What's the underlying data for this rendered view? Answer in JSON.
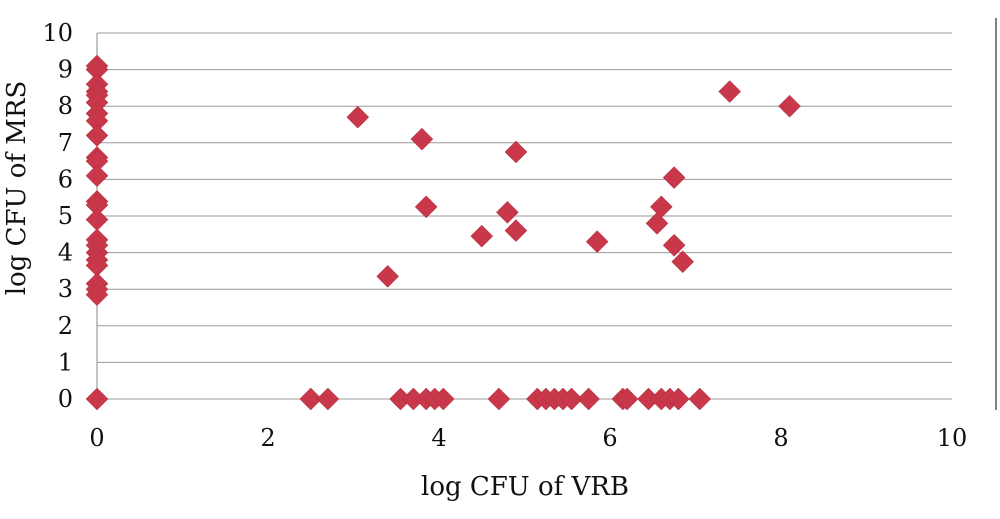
{
  "chart_data": {
    "type": "scatter",
    "xlabel": "log CFU of VRB",
    "ylabel": "log CFU of MRS",
    "xlim": [
      0,
      10
    ],
    "ylim": [
      0,
      10
    ],
    "x_ticks": [
      "0",
      "2",
      "4",
      "6",
      "8",
      "10"
    ],
    "y_ticks": [
      "0",
      "1",
      "2",
      "3",
      "4",
      "5",
      "6",
      "7",
      "8",
      "9",
      "10"
    ],
    "grid": "horizontal",
    "legend": "none",
    "marker": "diamond",
    "color": "#c8384a",
    "points": [
      {
        "x": 0,
        "y": 9.1
      },
      {
        "x": 0,
        "y": 9.0
      },
      {
        "x": 0,
        "y": 8.6
      },
      {
        "x": 0,
        "y": 8.4
      },
      {
        "x": 0,
        "y": 8.3
      },
      {
        "x": 0,
        "y": 8.1
      },
      {
        "x": 0,
        "y": 7.8
      },
      {
        "x": 0,
        "y": 7.6
      },
      {
        "x": 0,
        "y": 7.2
      },
      {
        "x": 0,
        "y": 6.6
      },
      {
        "x": 0,
        "y": 6.5
      },
      {
        "x": 0,
        "y": 6.1
      },
      {
        "x": 0,
        "y": 5.4
      },
      {
        "x": 0,
        "y": 5.3
      },
      {
        "x": 0,
        "y": 4.9
      },
      {
        "x": 0,
        "y": 4.35
      },
      {
        "x": 0,
        "y": 4.2
      },
      {
        "x": 0,
        "y": 4.0
      },
      {
        "x": 0,
        "y": 3.8
      },
      {
        "x": 0,
        "y": 3.65
      },
      {
        "x": 0,
        "y": 3.15
      },
      {
        "x": 0,
        "y": 3.0
      },
      {
        "x": 0,
        "y": 2.85
      },
      {
        "x": 0,
        "y": 0
      },
      {
        "x": 3.05,
        "y": 7.7
      },
      {
        "x": 3.8,
        "y": 7.1
      },
      {
        "x": 4.9,
        "y": 6.75
      },
      {
        "x": 3.85,
        "y": 5.25
      },
      {
        "x": 4.8,
        "y": 5.1
      },
      {
        "x": 4.5,
        "y": 4.45
      },
      {
        "x": 4.9,
        "y": 4.6
      },
      {
        "x": 3.4,
        "y": 3.35
      },
      {
        "x": 5.85,
        "y": 4.3
      },
      {
        "x": 6.75,
        "y": 6.05
      },
      {
        "x": 6.6,
        "y": 5.25
      },
      {
        "x": 6.55,
        "y": 4.8
      },
      {
        "x": 6.75,
        "y": 4.2
      },
      {
        "x": 6.85,
        "y": 3.75
      },
      {
        "x": 7.4,
        "y": 8.4
      },
      {
        "x": 8.1,
        "y": 8.0
      },
      {
        "x": 2.5,
        "y": 0
      },
      {
        "x": 2.7,
        "y": 0
      },
      {
        "x": 3.55,
        "y": 0
      },
      {
        "x": 3.7,
        "y": 0
      },
      {
        "x": 3.85,
        "y": 0
      },
      {
        "x": 3.95,
        "y": 0
      },
      {
        "x": 4.05,
        "y": 0
      },
      {
        "x": 4.7,
        "y": 0
      },
      {
        "x": 5.15,
        "y": 0
      },
      {
        "x": 5.25,
        "y": 0
      },
      {
        "x": 5.35,
        "y": 0
      },
      {
        "x": 5.45,
        "y": 0
      },
      {
        "x": 5.55,
        "y": 0
      },
      {
        "x": 5.75,
        "y": 0
      },
      {
        "x": 6.15,
        "y": 0
      },
      {
        "x": 6.2,
        "y": 0
      },
      {
        "x": 6.45,
        "y": 0
      },
      {
        "x": 6.6,
        "y": 0
      },
      {
        "x": 6.7,
        "y": 0
      },
      {
        "x": 6.8,
        "y": 0
      },
      {
        "x": 7.05,
        "y": 0
      }
    ]
  }
}
